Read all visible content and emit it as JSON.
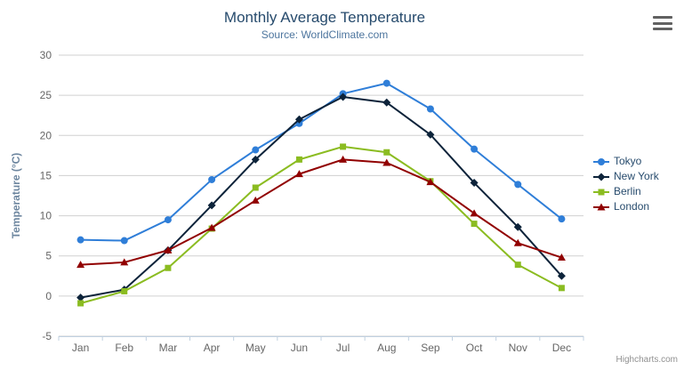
{
  "header": {
    "title": "Monthly Average Temperature",
    "subtitle": "Source: WorldClimate.com"
  },
  "credits": {
    "text": "Highcharts.com"
  },
  "export_menu": {
    "icon": "hamburger-menu-icon"
  },
  "axes": {
    "y_tick_labels": [
      "-5",
      "0",
      "5",
      "10",
      "15",
      "20",
      "25",
      "30"
    ],
    "x_tick_labels": [
      "Jan",
      "Feb",
      "Mar",
      "Apr",
      "May",
      "Jun",
      "Jul",
      "Aug",
      "Sep",
      "Oct",
      "Nov",
      "Dec"
    ]
  },
  "chart_data": {
    "type": "line",
    "title": "Monthly Average Temperature",
    "subtitle": "Source: WorldClimate.com",
    "categories": [
      "Jan",
      "Feb",
      "Mar",
      "Apr",
      "May",
      "Jun",
      "Jul",
      "Aug",
      "Sep",
      "Oct",
      "Nov",
      "Dec"
    ],
    "xlabel": "",
    "ylabel": "Temperature (°C)",
    "ylim": [
      -5,
      30
    ],
    "ytick_interval": 5,
    "grid": true,
    "legend_position": "right",
    "series": [
      {
        "name": "Tokyo",
        "color": "#2f7ed8",
        "marker": "circle",
        "values": [
          7.0,
          6.9,
          9.5,
          14.5,
          18.2,
          21.5,
          25.2,
          26.5,
          23.3,
          18.3,
          13.9,
          9.6
        ]
      },
      {
        "name": "New York",
        "color": "#0d233a",
        "marker": "diamond",
        "values": [
          -0.2,
          0.8,
          5.7,
          11.3,
          17.0,
          22.0,
          24.8,
          24.1,
          20.1,
          14.1,
          8.6,
          2.5
        ]
      },
      {
        "name": "Berlin",
        "color": "#8bbc21",
        "marker": "square",
        "values": [
          -0.9,
          0.6,
          3.5,
          8.4,
          13.5,
          17.0,
          18.6,
          17.9,
          14.3,
          9.0,
          3.9,
          1.0
        ]
      },
      {
        "name": "London",
        "color": "#910000",
        "marker": "triangle",
        "values": [
          3.9,
          4.2,
          5.7,
          8.5,
          11.9,
          15.2,
          17.0,
          16.6,
          14.2,
          10.3,
          6.6,
          4.8
        ]
      }
    ]
  },
  "style_colors": {
    "grid_line": "#d0d0d0",
    "axis_line": "#c0d0e0",
    "axis_label": "#666666",
    "title": "#274b6d",
    "subtitle": "#4d759e",
    "y_axis_title": "#6d869f",
    "legend_text": "#274b6d"
  }
}
